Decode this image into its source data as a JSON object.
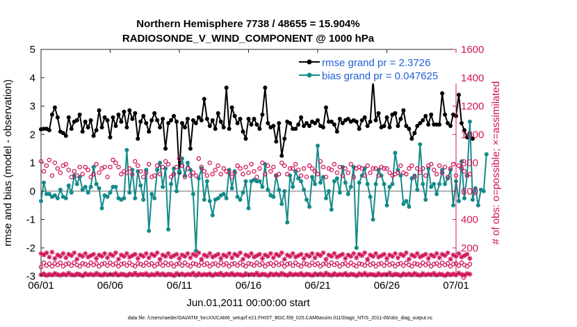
{
  "chart_data": {
    "type": "line",
    "title": "Northern Hemisphere 7738 / 48655 = 15.904%",
    "subtitle": "RADIOSONDE_V_WIND_COMPONENT @ 1000 hPa",
    "xlabel": "Jun.01,2011 00:00:00 start",
    "ylabel": "rmse and bias (model - observation)",
    "y2label": "# of obs: o=possible; ×=assimilated",
    "footnote": "data file: /Users/raeder/DAI/ATM_forcXX/CAM6_setup/f.e21.FHIST_BGC.f09_025.CAM6assim.011/Diags_NTrS_2011-06/obs_diag_output.nc",
    "xlim": [
      0,
      30
    ],
    "ylim": [
      -3,
      5
    ],
    "y2lim": [
      0,
      1600
    ],
    "xticks": [
      0,
      5,
      10,
      15,
      20,
      25,
      30
    ],
    "xtick_labels": [
      "06/01",
      "06/06",
      "06/11",
      "06/16",
      "06/21",
      "06/26",
      "07/01"
    ],
    "yticks": [
      -3,
      -2,
      -1,
      0,
      1,
      2,
      3,
      4,
      5
    ],
    "ytick_labels": [
      "-3",
      "-2",
      "-1",
      "0",
      "1",
      "2",
      "3",
      "4",
      "5"
    ],
    "y2ticks": [
      0,
      200,
      400,
      600,
      800,
      1000,
      1200,
      1400,
      1600
    ],
    "y2tick_labels": [
      "0",
      "200",
      "400",
      "600",
      "800",
      "1000",
      "1200",
      "1400",
      "1600"
    ],
    "legend": [
      "rmse grand pr = 2.3726",
      "bias grand pr = 0.047625"
    ],
    "series": [
      {
        "name": "rmse",
        "color": "#000000",
        "marker": "dot",
        "values": [
          2.18,
          2.2,
          2.2,
          2.15,
          2.7,
          2.95,
          2.6,
          2.1,
          2.05,
          1.95,
          2.6,
          2.2,
          2.45,
          2.5,
          2.7,
          2.1,
          2.45,
          2.25,
          2.5,
          1.95,
          2.15,
          2.85,
          2.25,
          2.6,
          2.5,
          1.9,
          2.6,
          2.3,
          2.7,
          2.45,
          2.8,
          2.25,
          2.85,
          2.55,
          2.75,
          1.85,
          2.45,
          2.65,
          2.4,
          2.1,
          2.5,
          2.75,
          2.5,
          2.25,
          2.55,
          1.5,
          2.4,
          2.5,
          2.65,
          2.45,
          0.65,
          2.4,
          2.25,
          2.55,
          1.5,
          2.5,
          2.4,
          2.6,
          2.5,
          3.25,
          2.55,
          2.3,
          2.5,
          2.2,
          2.75,
          2.45,
          2.25,
          3.65,
          2.2,
          2.95,
          2.65,
          2.4,
          2.55,
          2.1,
          1.85,
          2.55,
          2.35,
          2.55,
          2.35,
          2.2,
          2.7,
          3.65,
          2.4,
          2.25,
          2.3,
          1.75,
          2.4,
          1.25,
          1.85,
          2.45,
          2.4,
          2.2,
          2.2,
          2.35,
          2.6,
          2.3,
          2.4,
          2.3,
          2.45,
          2.4,
          2.5,
          2.3,
          2.25,
          2.95,
          2.45,
          2.45,
          2.35,
          2.1,
          2.55,
          2.4,
          2.5,
          2.55,
          2.45,
          2.5,
          2.45,
          2.2,
          2.5,
          2.6,
          2.3,
          2.45,
          3.9,
          2.5,
          2.75,
          2.25,
          2.3,
          2.6,
          2.25,
          2.7,
          2.75,
          2.3,
          2.55,
          2.85,
          2.3,
          2.2,
          1.85,
          2.05,
          2.3,
          2.4,
          2.5,
          2.65,
          2.35,
          2.7,
          2.35,
          2.35,
          2.35,
          3.45,
          2.7,
          2.4,
          2.3,
          2.7,
          2.65,
          3.4,
          2.4,
          2.15,
          1.9,
          2.05,
          1.85
        ],
        "x_start": 0,
        "x_step": 0.2
      },
      {
        "name": "bias",
        "color": "#148a8a",
        "marker": "dot",
        "values": [
          -0.35,
          0.3,
          -0.1,
          -0.1,
          -0.2,
          -0.15,
          -0.25,
          0.05,
          -0.2,
          -0.25,
          0.2,
          -0.05,
          0.55,
          0.25,
          0.5,
          0.05,
          0.15,
          -0.05,
          0.15,
          0.85,
          0.25,
          0.1,
          -0.6,
          -0.15,
          -0.2,
          -0.05,
          0.15,
          0.15,
          -0.25,
          -0.3,
          -0.25,
          1.45,
          -0.05,
          0.75,
          -0.25,
          0.7,
          0.2,
          -0.3,
          0.75,
          -1.4,
          -0.1,
          -0.25,
          0.75,
          1.0,
          0.15,
          0.8,
          -1.35,
          0.25,
          0.8,
          0.0,
          0.7,
          1.15,
          0.55,
          1.0,
          0.75,
          -0.1,
          -2.1,
          0.45,
          0.8,
          -0.3,
          0.35,
          -0.35,
          -0.85,
          -0.3,
          -0.25,
          -0.15,
          -0.1,
          -0.25,
          0.75,
          0.1,
          0.7,
          -0.2,
          -0.3,
          -0.05,
          0.35,
          -0.6,
          0.35,
          0.4,
          0.35,
          0.35,
          0.15,
          0.95,
          0.05,
          -0.15,
          -0.2,
          0.55,
          0.05,
          -0.45,
          0.0,
          -1.1,
          0.55,
          0.15,
          0.7,
          0.45,
          0.35,
          0.05,
          -0.3,
          -0.55,
          0.5,
          0.25,
          1.6,
          0.3,
          0.5,
          -0.25,
          0.0,
          -0.65,
          0.35,
          0.45,
          -0.05,
          0.85,
          0.3,
          -0.1,
          0.15,
          0.85,
          -2.0,
          0.3,
          0.55,
          0.8,
          0.25,
          -0.2,
          -1.0,
          0.25,
          0.75,
          0.55,
          0.25,
          -0.5,
          0.15,
          0.25,
          1.35,
          0.75,
          0.55,
          -0.45,
          -0.35,
          -0.55,
          0.45,
          0.55,
          0.05,
          1.65,
          0.25,
          -0.3,
          0.8,
          0.15,
          0.25,
          -0.1,
          0.25,
          0.75,
          0.25,
          0.45,
          0.75,
          -0.5,
          0.35,
          -0.35,
          1.05,
          -0.25,
          0.55,
          2.45,
          -0.3,
          0.1,
          -0.5,
          0.05,
          0.0,
          1.3
        ],
        "x_start": 0,
        "x_step": 0.2
      },
      {
        "name": "possible",
        "color": "#d0145a",
        "marker": "circle",
        "y_axis": "right",
        "values": [
          810,
          740,
          780,
          820,
          710,
          800,
          760,
          730,
          780,
          790,
          750,
          700,
          740,
          710,
          770,
          720,
          770,
          750,
          700,
          720,
          790,
          730,
          760,
          770,
          700,
          770,
          820,
          800,
          770,
          720,
          740,
          730,
          760,
          720,
          810,
          780,
          740,
          700,
          730,
          790,
          700,
          710,
          780,
          720,
          770,
          810,
          790,
          700,
          720,
          770,
          830,
          780,
          700,
          760,
          710,
          730,
          710,
          830,
          770,
          740,
          710,
          800,
          720,
          750,
          780,
          720,
          760,
          740,
          730,
          700,
          730,
          780,
          760,
          720,
          770,
          730,
          790,
          740,
          700,
          760,
          800,
          720,
          780,
          740,
          770,
          710,
          720,
          800,
          780,
          720,
          760,
          760,
          790,
          750,
          710,
          760,
          700,
          780,
          760,
          740,
          720,
          810,
          770,
          700,
          760,
          750,
          790,
          730,
          770,
          710,
          760,
          730,
          790,
          700,
          760,
          770,
          760,
          710,
          780,
          730,
          760,
          760,
          710,
          770,
          760,
          760,
          730,
          710,
          720,
          730,
          780,
          730,
          720,
          760,
          780,
          700,
          760,
          730,
          760,
          710,
          780,
          790,
          750,
          720,
          780,
          730,
          770,
          700,
          760,
          790,
          710,
          780,
          760,
          740,
          710,
          720
        ],
        "x_start": 0,
        "x_step": 0.2
      },
      {
        "name": "possible-low",
        "color": "#d0145a",
        "marker": "circle",
        "y_axis": "right",
        "values": [
          65,
          95,
          75,
          88,
          70,
          90,
          80,
          95,
          70,
          85,
          90,
          75,
          95,
          80,
          70,
          90,
          85,
          75,
          95,
          80,
          90,
          70,
          85,
          90,
          75,
          95,
          80,
          90,
          70,
          85,
          90,
          75,
          95,
          80,
          70,
          90,
          85,
          75,
          95,
          80,
          90,
          70,
          85,
          90,
          75,
          95,
          80,
          90,
          70,
          85,
          90,
          75,
          95,
          80,
          70,
          90,
          85,
          75,
          95,
          80,
          90,
          70,
          85,
          90,
          75,
          95,
          80,
          90,
          70,
          85,
          90,
          75,
          95,
          80,
          70,
          90,
          85,
          75,
          95,
          80,
          90,
          70,
          85,
          90,
          75,
          95,
          80,
          90,
          70,
          85,
          90,
          75,
          95,
          80,
          70,
          90,
          85,
          75,
          95,
          80,
          90,
          70,
          85,
          90,
          75,
          95,
          80,
          90,
          70,
          85,
          90,
          75,
          95,
          80,
          70,
          90,
          85,
          75,
          95,
          80,
          90,
          70,
          85,
          90,
          75,
          95,
          80,
          90,
          70,
          85,
          90,
          75,
          95,
          80,
          70,
          90,
          85,
          75,
          95,
          80,
          90,
          70,
          85,
          90,
          75,
          95,
          80,
          90,
          70,
          85,
          90,
          75,
          95,
          80,
          70,
          85
        ],
        "x_start": 0,
        "x_step": 0.2
      },
      {
        "name": "assimilated",
        "color": "#d0145a",
        "marker": "star",
        "y_axis": "right",
        "values": [
          160,
          150,
          165,
          135,
          170,
          125,
          150,
          140,
          160,
          130,
          155,
          145,
          165,
          120,
          150,
          140,
          160,
          135,
          145,
          155,
          125,
          150,
          140,
          160,
          130,
          155,
          145,
          165,
          120,
          150,
          140,
          160,
          135,
          145,
          155,
          125,
          150,
          140,
          160,
          130,
          155,
          145,
          165,
          120,
          150,
          140,
          160,
          135,
          145,
          155,
          125,
          150,
          140,
          160,
          130,
          155,
          145,
          165,
          120,
          150,
          140,
          160,
          135,
          145,
          155,
          125,
          150,
          140,
          160,
          130,
          155,
          145,
          165,
          120,
          150,
          140,
          160,
          135,
          145,
          155,
          125,
          150,
          140,
          160,
          130,
          155,
          145,
          165,
          120,
          150,
          140,
          160,
          135,
          145,
          155,
          125,
          150,
          140,
          160,
          130,
          155,
          145,
          165,
          120,
          150,
          140,
          160,
          135,
          145,
          155,
          125,
          150,
          140,
          160,
          130,
          155,
          145,
          165,
          120,
          150,
          140,
          160,
          135,
          145,
          155,
          125,
          150,
          140,
          160,
          130,
          155,
          145,
          165,
          120,
          150,
          140,
          160,
          135,
          145,
          155,
          125,
          150,
          140,
          160,
          130,
          155,
          145,
          165,
          120,
          150,
          140,
          160,
          135,
          145,
          155,
          125
        ],
        "x_start": 0,
        "x_step": 0.2
      },
      {
        "name": "assimilated-low",
        "color": "#d0145a",
        "marker": "star",
        "y_axis": "right",
        "values": [
          10,
          18,
          5,
          14,
          8,
          20,
          12,
          6,
          16,
          9,
          22,
          11,
          7,
          17,
          13,
          4,
          19,
          10,
          15,
          8,
          21,
          12,
          6,
          18,
          9,
          14,
          11,
          20,
          7,
          16,
          13,
          5,
          17,
          10,
          22,
          8,
          15,
          12,
          19,
          6,
          14,
          9,
          21,
          11,
          18,
          7,
          16,
          13,
          4,
          20,
          10,
          17,
          8,
          15,
          12,
          22,
          6,
          19,
          9,
          14,
          11,
          18,
          5,
          16,
          13,
          21,
          7,
          17,
          10,
          20,
          8,
          15,
          12,
          6,
          19,
          9,
          14,
          11,
          22,
          7,
          16,
          13,
          4,
          18,
          10,
          17,
          8,
          21,
          12,
          6,
          19,
          9,
          15,
          11,
          20,
          7,
          16,
          13,
          5,
          18,
          10,
          17,
          8,
          22,
          12,
          6,
          19,
          9,
          14,
          11,
          20,
          7,
          16,
          13,
          4,
          18,
          10,
          21,
          8,
          15,
          12,
          6,
          19,
          9,
          14,
          11,
          22,
          7,
          16,
          13,
          5,
          18,
          10,
          17,
          8,
          20,
          12,
          6,
          19,
          9,
          15,
          11,
          21,
          7,
          16,
          13,
          4,
          18,
          10,
          17,
          8,
          22,
          12,
          6,
          19,
          14
        ],
        "x_start": 0,
        "x_step": 0.2
      }
    ]
  }
}
